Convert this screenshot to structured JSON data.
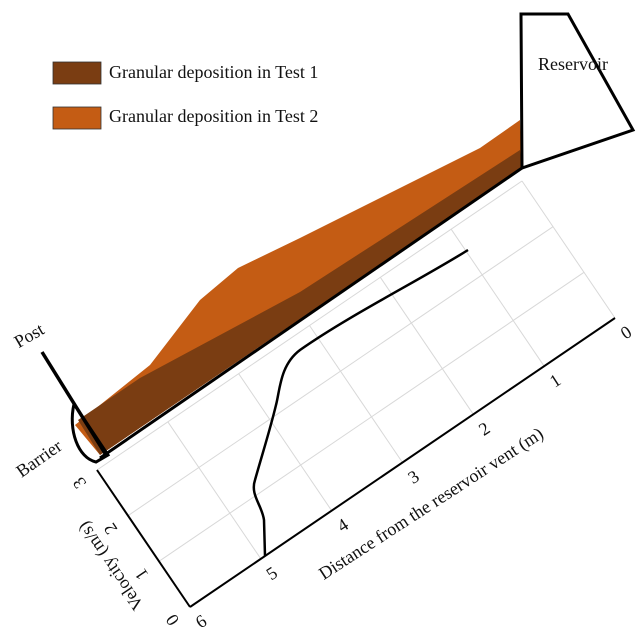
{
  "legend": [
    {
      "label": "Granular deposition in Test 1",
      "color": "#7a3d12"
    },
    {
      "label": "Granular deposition in Test 2",
      "color": "#c45c14"
    }
  ],
  "labels": {
    "reservoir": "Reservoir",
    "post": "Post",
    "barrier": "Barrier"
  },
  "axes": {
    "x": {
      "title": "Distance from the reservoir vent (m)",
      "ticks": [
        0,
        1,
        2,
        3,
        4,
        5,
        6
      ]
    },
    "y": {
      "title": "Velocity (m/s)",
      "ticks": [
        0,
        1,
        2,
        3
      ]
    }
  }
}
